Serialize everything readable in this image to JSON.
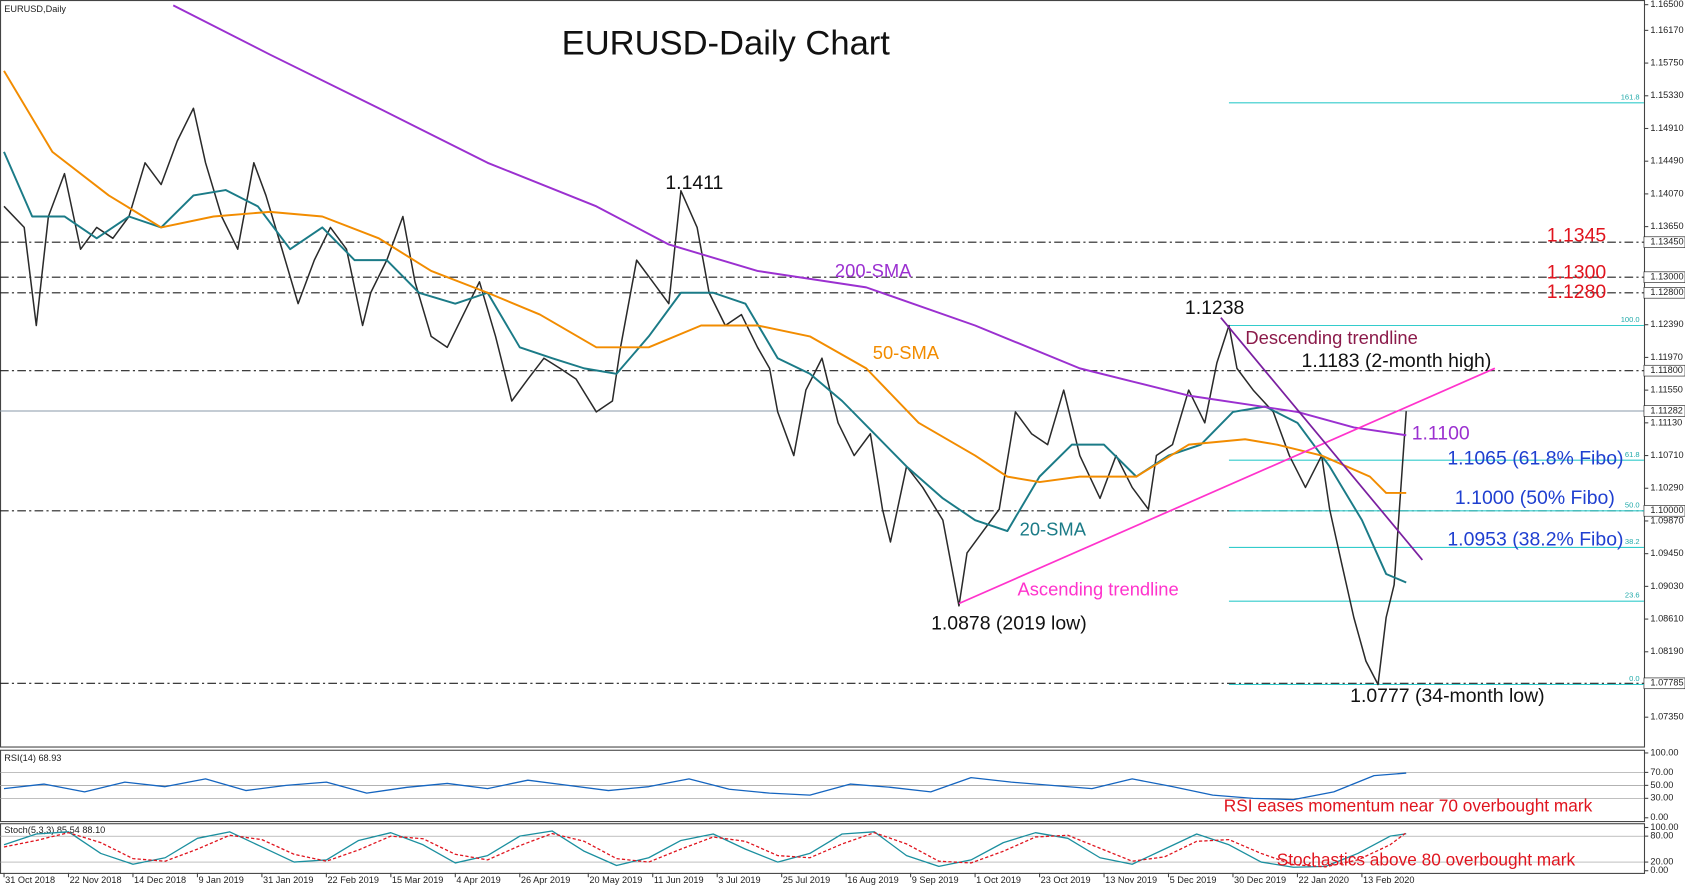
{
  "chart_data": [
    {
      "type": "line",
      "title": "EURUSD-Daily Chart",
      "xlim": [
        -1,
        407
      ],
      "ylim": [
        1.0696,
        1.1656
      ],
      "xticks": [
        {
          "value": 0,
          "label": "31 Oct 2018"
        },
        {
          "value": 16,
          "label": "22 Nov 2018"
        },
        {
          "value": 32,
          "label": "14 Dec 2018"
        },
        {
          "value": 48,
          "label": "9 Jan 2019"
        },
        {
          "value": 64,
          "label": "31 Jan 2019"
        },
        {
          "value": 80,
          "label": "22 Feb 2019"
        },
        {
          "value": 96,
          "label": "15 Mar 2019"
        },
        {
          "value": 112,
          "label": "4 Apr 2019"
        },
        {
          "value": 128,
          "label": "26 Apr 2019"
        },
        {
          "value": 145,
          "label": "20 May 2019"
        },
        {
          "value": 161,
          "label": "11 Jun 2019"
        },
        {
          "value": 177,
          "label": "3 Jul 2019"
        },
        {
          "value": 193,
          "label": "25 Jul 2019"
        },
        {
          "value": 209,
          "label": "16 Aug 2019"
        },
        {
          "value": 225,
          "label": "9 Sep 2019"
        },
        {
          "value": 241,
          "label": "1 Oct 2019"
        },
        {
          "value": 257,
          "label": "23 Oct 2019"
        },
        {
          "value": 273,
          "label": "13 Nov 2019"
        },
        {
          "value": 289,
          "label": "5 Dec 2019"
        },
        {
          "value": 305,
          "label": "30 Dec 2019"
        },
        {
          "value": 321,
          "label": "22 Jan 2020"
        },
        {
          "value": 337,
          "label": "13 Feb 2020"
        }
      ],
      "yticks": [
        {
          "value": 1.165,
          "label": "1.16500"
        },
        {
          "value": 1.1617,
          "label": "1.16170"
        },
        {
          "value": 1.1575,
          "label": "1.15750"
        },
        {
          "value": 1.1533,
          "label": "1.15330"
        },
        {
          "value": 1.1491,
          "label": "1.14910"
        },
        {
          "value": 1.1449,
          "label": "1.14490"
        },
        {
          "value": 1.1407,
          "label": "1.14070"
        },
        {
          "value": 1.1365,
          "label": "1.13650"
        },
        {
          "value": 1.1239,
          "label": "1.12390"
        },
        {
          "value": 1.1197,
          "label": "1.11970"
        },
        {
          "value": 1.1155,
          "label": "1.11550"
        },
        {
          "value": 1.1113,
          "label": "1.11130"
        },
        {
          "value": 1.1071,
          "label": "1.10710"
        },
        {
          "value": 1.1029,
          "label": "1.10290"
        },
        {
          "value": 1.0987,
          "label": "1.09870"
        },
        {
          "value": 1.0945,
          "label": "1.09450"
        },
        {
          "value": 1.0903,
          "label": "1.09030"
        },
        {
          "value": 1.0861,
          "label": "1.08610"
        },
        {
          "value": 1.0819,
          "label": "1.08190"
        },
        {
          "value": 1.0735,
          "label": "1.07350"
        }
      ],
      "levels": [
        {
          "value": 1.1345,
          "label": "1.13450"
        },
        {
          "value": 1.13,
          "label": "1.13000"
        },
        {
          "value": 1.128,
          "label": "1.12800"
        },
        {
          "value": 1.118,
          "label": "1.11800"
        },
        {
          "value": 1.1,
          "label": "1.10000"
        },
        {
          "value": 1.07785,
          "label": "1.07785"
        }
      ],
      "current": {
        "value": 1.11282,
        "label": "1.11282"
      },
      "fibonacci": {
        "color": "#33cccc",
        "start": 304,
        "levels": [
          {
            "value": 1.1524,
            "label": "161.8"
          },
          {
            "value": 1.1238,
            "label": "100.0"
          },
          {
            "value": 1.1065,
            "label": "61.8"
          },
          {
            "value": 1.1,
            "label": "50.0"
          },
          {
            "value": 1.0953,
            "label": "38.2"
          },
          {
            "value": 1.0884,
            "label": "23.6"
          },
          {
            "value": 1.0777,
            "label": "0.0"
          }
        ]
      },
      "series": [
        {
          "name": "EURUSD,Daily",
          "color": "#2a2a2a",
          "x": [
            0,
            5,
            8,
            11,
            15,
            19,
            23,
            27,
            31,
            35,
            39,
            43,
            47,
            50,
            54,
            58,
            62,
            65,
            69,
            73,
            77,
            81,
            85,
            89,
            91,
            95,
            99,
            102,
            106,
            110,
            114,
            118,
            122,
            126,
            130,
            134,
            138,
            142,
            147,
            151,
            153,
            157,
            161,
            165,
            168,
            172,
            175,
            179,
            183,
            187,
            190,
            192,
            196,
            199,
            203,
            207,
            211,
            215,
            218,
            220,
            224,
            228,
            233,
            237,
            239,
            243,
            247,
            251,
            255,
            259,
            263,
            267,
            272,
            276,
            280,
            284,
            286,
            290,
            294,
            298,
            301,
            304,
            306,
            310,
            315,
            319,
            323,
            327,
            329,
            332,
            335,
            338,
            341,
            343,
            345,
            348
          ],
          "values": [
            1.1391,
            1.1364,
            1.1238,
            1.1378,
            1.1433,
            1.1336,
            1.1364,
            1.135,
            1.1378,
            1.1447,
            1.1419,
            1.1475,
            1.1517,
            1.1447,
            1.1378,
            1.1336,
            1.1447,
            1.1405,
            1.1336,
            1.1266,
            1.1322,
            1.1364,
            1.1336,
            1.1238,
            1.128,
            1.1322,
            1.1378,
            1.1294,
            1.1224,
            1.121,
            1.1252,
            1.1294,
            1.1224,
            1.1141,
            1.1169,
            1.1196,
            1.1183,
            1.1169,
            1.1127,
            1.1141,
            1.121,
            1.1322,
            1.1294,
            1.1266,
            1.1411,
            1.1364,
            1.128,
            1.1238,
            1.1252,
            1.121,
            1.1183,
            1.1127,
            1.1071,
            1.1155,
            1.1196,
            1.1113,
            1.1071,
            1.1099,
            1.1002,
            1.096,
            1.1057,
            1.103,
            1.0988,
            1.0878,
            1.0946,
            1.0974,
            1.1002,
            1.1127,
            1.1099,
            1.1085,
            1.1155,
            1.1071,
            1.1016,
            1.1071,
            1.103,
            1.1002,
            1.1071,
            1.1085,
            1.1155,
            1.1113,
            1.119,
            1.1238,
            1.1183,
            1.1155,
            1.1127,
            1.1071,
            1.103,
            1.1071,
            1.1002,
            1.0932,
            1.0863,
            1.0807,
            1.0777,
            1.0863,
            1.0905,
            1.1128
          ]
        },
        {
          "name": "20-SMA",
          "color": "#1b7b87",
          "x": [
            0,
            7,
            15,
            23,
            31,
            39,
            47,
            55,
            63,
            71,
            79,
            87,
            95,
            103,
            112,
            120,
            128,
            136,
            144,
            152,
            160,
            168,
            176,
            184,
            192,
            200,
            208,
            216,
            224,
            233,
            241,
            249,
            257,
            265,
            273,
            281,
            289,
            297,
            305,
            313,
            321,
            329,
            337,
            343,
            348
          ],
          "values": [
            1.1461,
            1.1378,
            1.1378,
            1.135,
            1.1378,
            1.1364,
            1.1405,
            1.1412,
            1.1391,
            1.1336,
            1.1364,
            1.1322,
            1.1322,
            1.128,
            1.1266,
            1.128,
            1.121,
            1.1196,
            1.1183,
            1.1176,
            1.1224,
            1.128,
            1.128,
            1.1266,
            1.1196,
            1.1176,
            1.1141,
            1.1099,
            1.1057,
            1.1016,
            1.0988,
            1.0974,
            1.1044,
            1.1085,
            1.1085,
            1.1044,
            1.1071,
            1.1085,
            1.1127,
            1.1134,
            1.1113,
            1.1057,
            1.0988,
            1.0919,
            1.0908
          ]
        },
        {
          "name": "50-SMA",
          "color": "#f28c00",
          "x": [
            0,
            12,
            26,
            39,
            52,
            66,
            79,
            93,
            106,
            120,
            133,
            147,
            160,
            173,
            187,
            200,
            214,
            227,
            241,
            249,
            257,
            267,
            281,
            294,
            308,
            316,
            327,
            339,
            343,
            348
          ],
          "values": [
            1.1565,
            1.1461,
            1.1405,
            1.1364,
            1.1378,
            1.1384,
            1.1378,
            1.135,
            1.1308,
            1.128,
            1.1252,
            1.121,
            1.121,
            1.1238,
            1.1238,
            1.1224,
            1.1183,
            1.1113,
            1.1071,
            1.1044,
            1.1037,
            1.1044,
            1.1044,
            1.1085,
            1.1092,
            1.1085,
            1.1071,
            1.1044,
            1.1023,
            1.1023
          ]
        },
        {
          "name": "200-SMA",
          "color": "#9b30d0",
          "x": [
            42,
            66,
            93,
            120,
            147,
            165,
            187,
            214,
            241,
            267,
            294,
            321,
            335,
            348
          ],
          "values": [
            1.1649,
            1.1586,
            1.1517,
            1.1447,
            1.1391,
            1.1342,
            1.1308,
            1.1287,
            1.1238,
            1.1183,
            1.1148,
            1.1127,
            1.1107,
            1.1097
          ]
        }
      ],
      "trendlines": [
        {
          "label": "Ascending trendline",
          "color": "#ff33cc",
          "x": [
            237,
            370
          ],
          "values": [
            1.0881,
            1.1183
          ]
        },
        {
          "label": "Descending trendline",
          "color": "#8b1a4a",
          "x": [
            302,
            352
          ],
          "values": [
            1.1248,
            1.0937
          ]
        }
      ],
      "annotations": [
        {
          "text": "1.1411",
          "color": "#111111"
        },
        {
          "text": "1.0878 (2019 low)",
          "color": "#111111"
        },
        {
          "text": "1.1238",
          "color": "#111111"
        },
        {
          "text": "1.1183 (2-month high)",
          "color": "#111111"
        },
        {
          "text": "1.1100",
          "color": "#9b30d0"
        },
        {
          "text": "1.1065 (61.8% Fibo)",
          "color": "#1f3fd0"
        },
        {
          "text": "1.1000 (50% Fibo)",
          "color": "#1f3fd0"
        },
        {
          "text": "1.0953 (38.2% Fibo)",
          "color": "#1f3fd0"
        },
        {
          "text": "1.0777 (34-month low)",
          "color": "#111111"
        },
        {
          "text": "1.1345",
          "color": "#e0141e"
        },
        {
          "text": "1.1300",
          "color": "#e0141e"
        },
        {
          "text": "1.1280",
          "color": "#e0141e"
        }
      ]
    },
    {
      "type": "line",
      "title": "RSI(14) 68.93",
      "ylim": [
        0,
        100
      ],
      "yticks": [
        {
          "value": 100,
          "label": "100.00"
        },
        {
          "value": 70,
          "label": "70.00"
        },
        {
          "value": 50,
          "label": "50.00"
        },
        {
          "value": 30,
          "label": "30.00"
        },
        {
          "value": 0,
          "label": "0.00"
        }
      ],
      "note": "RSI eases momentum near 70 overbought mark",
      "note_color": "#e0141e",
      "series": [
        {
          "color": "#1565c0",
          "x": [
            0,
            10,
            20,
            30,
            40,
            50,
            60,
            70,
            80,
            90,
            100,
            110,
            120,
            130,
            140,
            150,
            160,
            170,
            180,
            190,
            200,
            210,
            220,
            230,
            240,
            250,
            260,
            270,
            280,
            290,
            300,
            310,
            320,
            330,
            340,
            348
          ],
          "values": [
            45,
            52,
            40,
            55,
            48,
            60,
            42,
            50,
            55,
            38,
            47,
            53,
            45,
            58,
            50,
            42,
            48,
            60,
            44,
            38,
            35,
            52,
            47,
            40,
            62,
            55,
            50,
            45,
            60,
            48,
            35,
            30,
            28,
            40,
            65,
            68.93
          ]
        }
      ]
    },
    {
      "type": "line",
      "title": "Stoch(5,3,3) 85.54 88.10",
      "ylim": [
        0,
        100
      ],
      "yticks": [
        {
          "value": 100,
          "label": "100.00"
        },
        {
          "value": 80,
          "label": "80.00"
        },
        {
          "value": 20,
          "label": "20.00"
        },
        {
          "value": 0,
          "label": "0.00"
        }
      ],
      "note": "Stochastics above 80 overbought mark",
      "note_color": "#e0141e",
      "series": [
        {
          "color": "#1b8f9f",
          "style": "solid",
          "x": [
            0,
            8,
            16,
            24,
            32,
            40,
            48,
            56,
            64,
            72,
            80,
            88,
            96,
            104,
            112,
            120,
            128,
            136,
            144,
            152,
            160,
            168,
            176,
            184,
            192,
            200,
            208,
            216,
            224,
            232,
            240,
            248,
            256,
            264,
            272,
            280,
            288,
            296,
            304,
            312,
            320,
            328,
            336,
            344,
            348
          ],
          "values": [
            60,
            85,
            90,
            40,
            15,
            30,
            75,
            90,
            55,
            20,
            25,
            70,
            88,
            60,
            18,
            35,
            80,
            92,
            45,
            12,
            30,
            70,
            85,
            50,
            20,
            40,
            85,
            90,
            35,
            10,
            25,
            65,
            88,
            75,
            30,
            15,
            50,
            85,
            60,
            20,
            8,
            10,
            40,
            80,
            85.54
          ]
        },
        {
          "color": "#e0141e",
          "style": "dashed",
          "x": [
            0,
            8,
            16,
            24,
            32,
            40,
            48,
            56,
            64,
            72,
            80,
            88,
            96,
            104,
            112,
            120,
            128,
            136,
            144,
            152,
            160,
            168,
            176,
            184,
            192,
            200,
            208,
            216,
            224,
            232,
            240,
            248,
            256,
            264,
            272,
            280,
            288,
            296,
            304,
            312,
            320,
            328,
            336,
            344,
            348
          ],
          "values": [
            55,
            70,
            88,
            65,
            28,
            22,
            50,
            82,
            72,
            38,
            22,
            48,
            80,
            74,
            38,
            25,
            58,
            86,
            68,
            28,
            20,
            50,
            78,
            68,
            35,
            30,
            62,
            88,
            62,
            22,
            18,
            45,
            78,
            82,
            52,
            22,
            32,
            68,
            72,
            40,
            14,
            9,
            25,
            60,
            88.1
          ]
        }
      ]
    }
  ]
}
